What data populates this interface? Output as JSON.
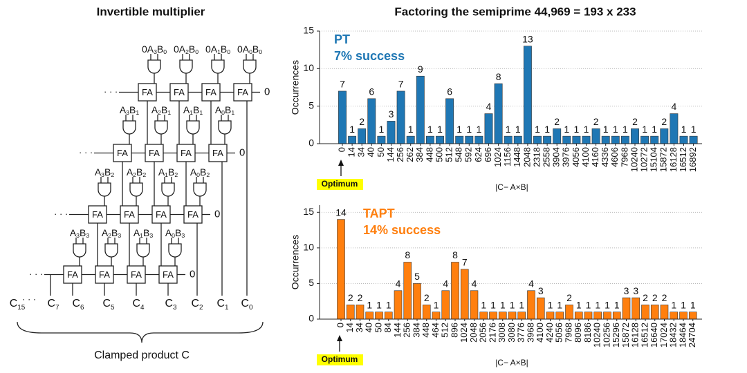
{
  "figure": {
    "title": "Factoring the semiprime 44,969 = 193 x 233"
  },
  "diagram": {
    "title": "Invertible multiplier",
    "fa_label": "FA",
    "dots": "· · ·",
    "zero": "0",
    "rows": [
      {
        "inputs": [
          [
            "0A",
            "3",
            "B",
            "0"
          ],
          [
            "0A",
            "2",
            "B",
            "0"
          ],
          [
            "0A",
            "1",
            "B",
            "0"
          ],
          [
            "0A",
            "0",
            "B",
            "0"
          ]
        ]
      },
      {
        "inputs": [
          [
            "A",
            "3",
            "B",
            "1"
          ],
          [
            "A",
            "2",
            "B",
            "1"
          ],
          [
            "A",
            "1",
            "B",
            "1"
          ],
          [
            "A",
            "0",
            "B",
            "1"
          ]
        ]
      },
      {
        "inputs": [
          [
            "A",
            "3",
            "B",
            "2"
          ],
          [
            "A",
            "2",
            "B",
            "2"
          ],
          [
            "A",
            "1",
            "B",
            "2"
          ],
          [
            "A",
            "0",
            "B",
            "2"
          ]
        ]
      },
      {
        "inputs": [
          [
            "A",
            "3",
            "B",
            "3"
          ],
          [
            "A",
            "2",
            "B",
            "3"
          ],
          [
            "A",
            "1",
            "B",
            "3"
          ],
          [
            "A",
            "0",
            "B",
            "3"
          ]
        ]
      }
    ],
    "outputs": [
      [
        "C",
        "15"
      ],
      [
        "C",
        "7"
      ],
      [
        "C",
        "6"
      ],
      [
        "C",
        "5"
      ],
      [
        "C",
        "4"
      ],
      [
        "C",
        "3"
      ],
      [
        "C",
        "2"
      ],
      [
        "C",
        "1"
      ],
      [
        "C",
        "0"
      ]
    ],
    "caption": "Clamped product C"
  },
  "chart_data": [
    {
      "type": "bar",
      "series_label": "PT",
      "annotation": "7% success",
      "color": "#1f77b4",
      "x_label": "|C− A×B|",
      "y_label": "Occurrences",
      "optimum_label": "Optimum",
      "categories": [
        "0",
        "14",
        "34",
        "40",
        "50",
        "144",
        "256",
        "262",
        "384",
        "448",
        "500",
        "512",
        "548",
        "592",
        "624",
        "696",
        "1024",
        "1156",
        "1448",
        "2048",
        "2318",
        "2558",
        "3904",
        "3976",
        "4056",
        "4100",
        "4160",
        "4336",
        "4606",
        "7968",
        "10240",
        "10272",
        "15104",
        "15872",
        "16128",
        "16512",
        "16892"
      ],
      "values": [
        7,
        1,
        2,
        6,
        1,
        3,
        7,
        1,
        9,
        1,
        1,
        6,
        1,
        1,
        1,
        4,
        8,
        1,
        1,
        13,
        1,
        1,
        2,
        1,
        1,
        1,
        2,
        1,
        1,
        1,
        2,
        1,
        1,
        2,
        4,
        1,
        1
      ],
      "ylim": [
        0,
        15
      ],
      "yticks": [
        0,
        5,
        10,
        15
      ],
      "grid": true
    },
    {
      "type": "bar",
      "series_label": "TAPT",
      "annotation": "14% success",
      "color": "#ff7f0e",
      "x_label": "|C− A×B|",
      "y_label": "Occurrences",
      "optimum_label": "Optimum",
      "categories": [
        "0",
        "14",
        "34",
        "40",
        "50",
        "84",
        "144",
        "256",
        "384",
        "448",
        "464",
        "512",
        "896",
        "1024",
        "2048",
        "2056",
        "2176",
        "3008",
        "3080",
        "3776",
        "3968",
        "4100",
        "4240",
        "5056",
        "7968",
        "8096",
        "8186",
        "10240",
        "10256",
        "15296",
        "15872",
        "16128",
        "16512",
        "16640",
        "17024",
        "18432",
        "18464",
        "24704"
      ],
      "values": [
        14,
        2,
        2,
        1,
        1,
        1,
        4,
        8,
        5,
        2,
        1,
        4,
        8,
        7,
        4,
        1,
        1,
        1,
        1,
        1,
        4,
        3,
        1,
        1,
        2,
        1,
        1,
        1,
        1,
        1,
        3,
        3,
        2,
        2,
        2,
        1,
        1,
        1
      ],
      "ylim": [
        0,
        16
      ],
      "yticks": [
        0,
        5,
        10,
        15
      ],
      "grid": true
    }
  ]
}
